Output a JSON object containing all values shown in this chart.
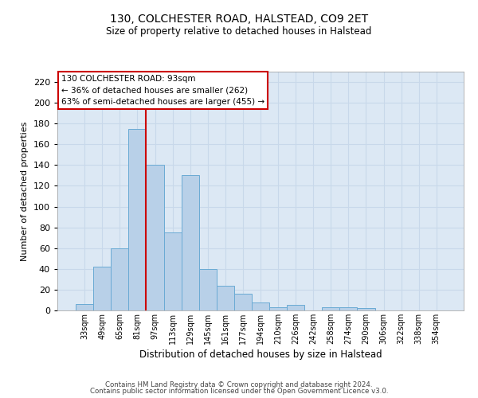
{
  "title_line1": "130, COLCHESTER ROAD, HALSTEAD, CO9 2ET",
  "title_line2": "Size of property relative to detached houses in Halstead",
  "xlabel": "Distribution of detached houses by size in Halstead",
  "ylabel": "Number of detached properties",
  "categories": [
    "33sqm",
    "49sqm",
    "65sqm",
    "81sqm",
    "97sqm",
    "113sqm",
    "129sqm",
    "145sqm",
    "161sqm",
    "177sqm",
    "194sqm",
    "210sqm",
    "226sqm",
    "242sqm",
    "258sqm",
    "274sqm",
    "290sqm",
    "306sqm",
    "322sqm",
    "338sqm",
    "354sqm"
  ],
  "values": [
    6,
    42,
    60,
    175,
    140,
    75,
    130,
    40,
    24,
    16,
    8,
    3,
    5,
    0,
    3,
    3,
    2,
    0,
    0,
    0,
    0
  ],
  "bar_color": "#b8d0e8",
  "bar_edge_color": "#6aaad4",
  "grid_color": "#c8d8ea",
  "background_color": "#dce8f4",
  "vline_color": "#cc0000",
  "annotation_text": "130 COLCHESTER ROAD: 93sqm\n← 36% of detached houses are smaller (262)\n63% of semi-detached houses are larger (455) →",
  "annotation_box_color": "#ffffff",
  "annotation_box_edge": "#cc0000",
  "footer_line1": "Contains HM Land Registry data © Crown copyright and database right 2024.",
  "footer_line2": "Contains public sector information licensed under the Open Government Licence v3.0.",
  "ylim": [
    0,
    230
  ],
  "yticks": [
    0,
    20,
    40,
    60,
    80,
    100,
    120,
    140,
    160,
    180,
    200,
    220
  ]
}
